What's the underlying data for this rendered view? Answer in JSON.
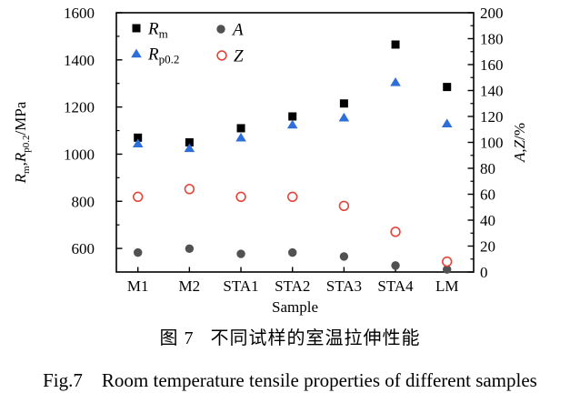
{
  "figure": {
    "caption_zh": "图 7   不同试样的室温拉伸性能",
    "caption_en": "Fig.7    Room temperature tensile properties of different samples"
  },
  "chart_data": {
    "type": "scatter",
    "categories": [
      "M1",
      "M2",
      "STA1",
      "STA2",
      "STA3",
      "STA4",
      "LM"
    ],
    "xlabel": "Sample",
    "ylabel_left": "Rm,Rp0.2/MPa",
    "ylabel_left_parts": [
      {
        "t": "R",
        "i": 1
      },
      {
        "t": "m",
        "s": 1
      },
      {
        "t": ","
      },
      {
        "t": "R",
        "i": 1
      },
      {
        "t": "p0.2",
        "s": 1
      },
      {
        "t": "/MPa"
      }
    ],
    "ylabel_right": "A,Z/%",
    "ylabel_right_parts": [
      {
        "t": "A",
        "i": 1
      },
      {
        "t": ","
      },
      {
        "t": "Z",
        "i": 1
      },
      {
        "t": "/%"
      }
    ],
    "ylim_left": [
      500,
      1600
    ],
    "yticks_left": [
      600,
      800,
      1000,
      1200,
      1400,
      1600
    ],
    "ylim_right": [
      0,
      200
    ],
    "yticks_right": [
      0,
      20,
      40,
      60,
      80,
      100,
      120,
      140,
      160,
      180,
      200
    ],
    "grid": false,
    "legend_position": "top-left-inside",
    "series": [
      {
        "name": "Rm",
        "label_parts": [
          {
            "t": "R",
            "i": 1
          },
          {
            "t": "m",
            "s": 1
          }
        ],
        "axis": "left",
        "marker": "square",
        "color": "#000000",
        "unit": "MPa",
        "values": [
          1070,
          1050,
          1110,
          1160,
          1215,
          1465,
          1285
        ]
      },
      {
        "name": "Rp0.2",
        "label_parts": [
          {
            "t": "R",
            "i": 1
          },
          {
            "t": "p0.2",
            "s": 1
          }
        ],
        "axis": "left",
        "marker": "triangle",
        "color": "#2e6ed8",
        "unit": "MPa",
        "values": [
          1045,
          1025,
          1070,
          1125,
          1155,
          1305,
          1130
        ]
      },
      {
        "name": "A",
        "label_parts": [
          {
            "t": "A",
            "i": 1
          }
        ],
        "axis": "right",
        "marker": "circle",
        "color": "#515151",
        "unit": "%",
        "values": [
          15,
          18,
          14,
          15,
          12,
          5,
          2
        ]
      },
      {
        "name": "Z",
        "label_parts": [
          {
            "t": "Z",
            "i": 1
          }
        ],
        "axis": "right",
        "marker": "circle-open",
        "color": "#e3453b",
        "unit": "%",
        "values": [
          58,
          64,
          58,
          58,
          51,
          31,
          8
        ]
      }
    ]
  }
}
